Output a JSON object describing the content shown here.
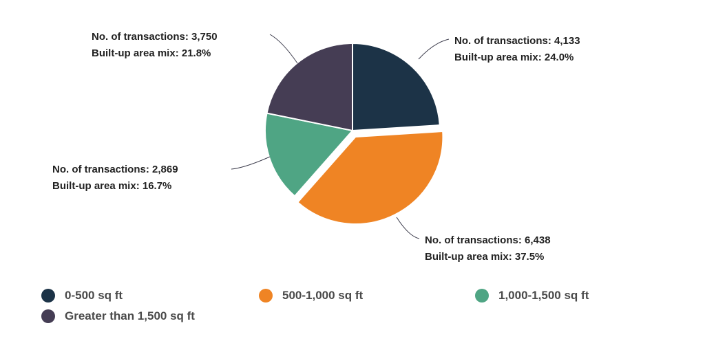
{
  "chart_data": {
    "type": "pie",
    "title": "",
    "slices": [
      {
        "category": "0-500 sq ft",
        "transactions": 4133,
        "value": 24.0,
        "label_line1": "No. of transactions: 4,133",
        "label_line2": "Built-up area mix: 24.0%",
        "color": "#1c3347",
        "exploded": false
      },
      {
        "category": "500-1,000 sq ft",
        "transactions": 6438,
        "value": 37.5,
        "label_line1": "No. of transactions: 6,438",
        "label_line2": "Built-up area mix: 37.5%",
        "color": "#ef8424",
        "exploded": true
      },
      {
        "category": "1,000-1,500 sq ft",
        "transactions": 2869,
        "value": 16.7,
        "label_line1": "No. of transactions: 2,869",
        "label_line2": "Built-up area mix: 16.7%",
        "color": "#4fa584",
        "exploded": false
      },
      {
        "category": "Greater than 1,500 sq ft",
        "transactions": 3750,
        "value": 21.8,
        "label_line1": "No. of transactions: 3,750",
        "label_line2": "Built-up area mix: 21.8%",
        "color": "#453d54",
        "exploded": false
      }
    ],
    "legend_position": "bottom"
  },
  "legend": {
    "items": [
      {
        "label": "0-500 sq ft",
        "color": "#1c3347"
      },
      {
        "label": "500-1,000 sq ft",
        "color": "#ef8424"
      },
      {
        "label": "1,000-1,500 sq ft",
        "color": "#4fa584"
      },
      {
        "label": "Greater than 1,500 sq ft",
        "color": "#453d54"
      }
    ]
  }
}
